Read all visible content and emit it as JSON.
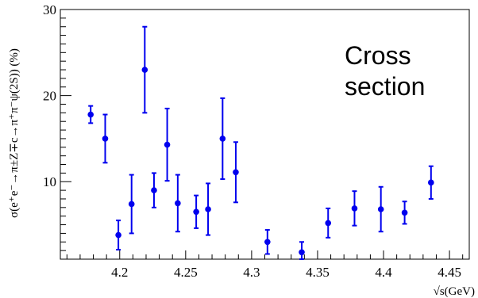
{
  "chart_data": {
    "type": "scatter",
    "xlabel": "√s(GeV)",
    "ylabel": "σ(e⁺e⁻→π±Z∓c→π⁺π⁻ψ(2S)) (%)",
    "xlim": [
      4.155,
      4.465
    ],
    "ylim": [
      1,
      30
    ],
    "x_ticks": [
      4.2,
      4.25,
      4.3,
      4.35,
      4.4,
      4.45
    ],
    "y_ticks": [
      10,
      20,
      30
    ],
    "annotation": [
      "Cross",
      "section"
    ],
    "marker_color": "#0000ee",
    "grid": false,
    "series": [
      {
        "points": [
          {
            "x": 4.178,
            "y": 17.8,
            "err": 1.0
          },
          {
            "x": 4.189,
            "y": 15.0,
            "err": 2.8
          },
          {
            "x": 4.199,
            "y": 3.8,
            "err": 1.7
          },
          {
            "x": 4.209,
            "y": 7.4,
            "err": 3.4
          },
          {
            "x": 4.219,
            "y": 23.0,
            "err": 5.0
          },
          {
            "x": 4.226,
            "y": 9.0,
            "err": 2.0
          },
          {
            "x": 4.236,
            "y": 14.3,
            "err": 4.2
          },
          {
            "x": 4.244,
            "y": 7.5,
            "err": 3.3
          },
          {
            "x": 4.258,
            "y": 6.5,
            "err": 1.9
          },
          {
            "x": 4.267,
            "y": 6.8,
            "err": 3.0
          },
          {
            "x": 4.278,
            "y": 15.0,
            "err": 4.7
          },
          {
            "x": 4.288,
            "y": 11.1,
            "err": 3.5
          },
          {
            "x": 4.312,
            "y": 3.0,
            "err": 1.4
          },
          {
            "x": 4.338,
            "y": 1.8,
            "err": 1.2
          },
          {
            "x": 4.358,
            "y": 5.2,
            "err": 1.7
          },
          {
            "x": 4.378,
            "y": 6.9,
            "err": 2.0
          },
          {
            "x": 4.398,
            "y": 6.8,
            "err": 2.6
          },
          {
            "x": 4.416,
            "y": 6.4,
            "err": 1.3
          },
          {
            "x": 4.436,
            "y": 9.9,
            "err": 1.9
          }
        ]
      }
    ]
  }
}
